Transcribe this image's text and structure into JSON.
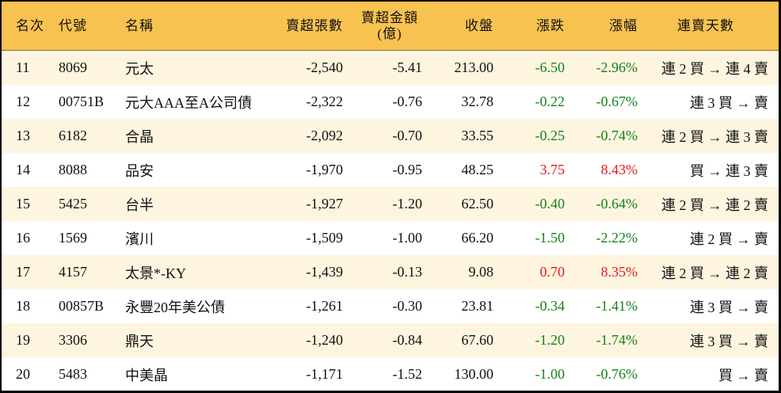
{
  "colors": {
    "header_bg": "#F8C250",
    "row_alt_bg": "#FEF5E0",
    "up": "#e8171b",
    "down": "#16811a"
  },
  "headers": [
    "名次",
    "代號",
    "名稱",
    "賣超張數",
    "賣超金額\n(億)",
    "收盤",
    "漲跌",
    "漲幅",
    "連賣天數"
  ],
  "rows": [
    {
      "rank": "11",
      "code": "8069",
      "name": "元太",
      "shares": "-2,540",
      "amount": "-5.41",
      "close": "213.00",
      "change": "-6.50",
      "pct": "-2.96%",
      "streak": "連 2 買 → 連 4 賣",
      "dir": "down"
    },
    {
      "rank": "12",
      "code": "00751B",
      "name": "元大AAA至A公司債",
      "shares": "-2,322",
      "amount": "-0.76",
      "close": "32.78",
      "change": "-0.22",
      "pct": "-0.67%",
      "streak": "連 3 買 → 賣",
      "dir": "down"
    },
    {
      "rank": "13",
      "code": "6182",
      "name": "合晶",
      "shares": "-2,092",
      "amount": "-0.70",
      "close": "33.55",
      "change": "-0.25",
      "pct": "-0.74%",
      "streak": "連 2 買 → 連 3 賣",
      "dir": "down"
    },
    {
      "rank": "14",
      "code": "8088",
      "name": "品安",
      "shares": "-1,970",
      "amount": "-0.95",
      "close": "48.25",
      "change": "3.75",
      "pct": "8.43%",
      "streak": "買 → 連 3 賣",
      "dir": "up"
    },
    {
      "rank": "15",
      "code": "5425",
      "name": "台半",
      "shares": "-1,927",
      "amount": "-1.20",
      "close": "62.50",
      "change": "-0.40",
      "pct": "-0.64%",
      "streak": "連 2 買 → 連 2 賣",
      "dir": "down"
    },
    {
      "rank": "16",
      "code": "1569",
      "name": "濱川",
      "shares": "-1,509",
      "amount": "-1.00",
      "close": "66.20",
      "change": "-1.50",
      "pct": "-2.22%",
      "streak": "連 2 買 → 賣",
      "dir": "down"
    },
    {
      "rank": "17",
      "code": "4157",
      "name": "太景*-KY",
      "shares": "-1,439",
      "amount": "-0.13",
      "close": "9.08",
      "change": "0.70",
      "pct": "8.35%",
      "streak": "連 2 買 → 連 2 賣",
      "dir": "up"
    },
    {
      "rank": "18",
      "code": "00857B",
      "name": "永豐20年美公債",
      "shares": "-1,261",
      "amount": "-0.30",
      "close": "23.81",
      "change": "-0.34",
      "pct": "-1.41%",
      "streak": "連 3 買 → 賣",
      "dir": "down"
    },
    {
      "rank": "19",
      "code": "3306",
      "name": "鼎天",
      "shares": "-1,240",
      "amount": "-0.84",
      "close": "67.60",
      "change": "-1.20",
      "pct": "-1.74%",
      "streak": "連 3 買 → 賣",
      "dir": "down"
    },
    {
      "rank": "20",
      "code": "5483",
      "name": "中美晶",
      "shares": "-1,171",
      "amount": "-1.52",
      "close": "130.00",
      "change": "-1.00",
      "pct": "-0.76%",
      "streak": "買 → 賣",
      "dir": "down"
    }
  ]
}
